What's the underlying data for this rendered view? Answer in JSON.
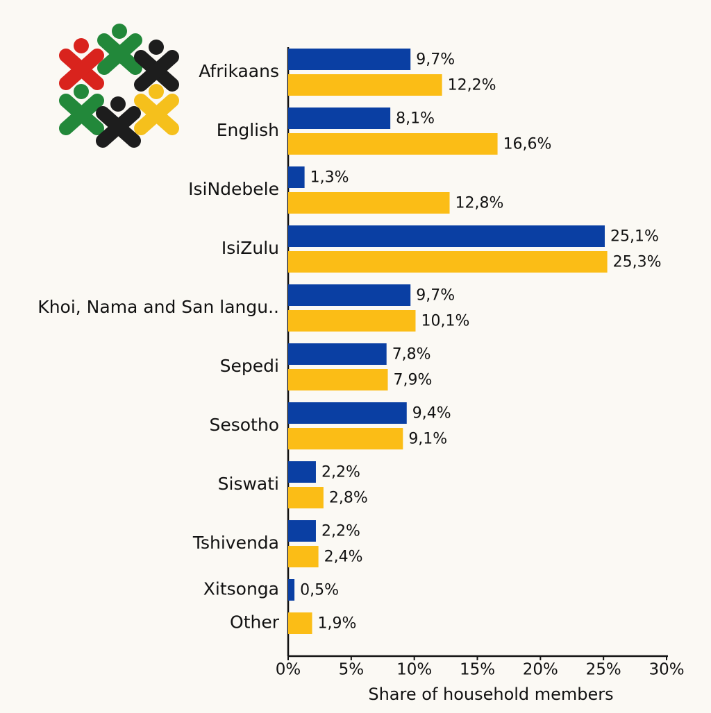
{
  "chart_data": {
    "type": "bar",
    "orientation": "horizontal",
    "x_label": "Share of household members",
    "categories": [
      "Afrikaans",
      "English",
      "IsiNdebele",
      "IsiZulu",
      "Khoi, Nama and San langu..",
      "Sepedi",
      "Sesotho",
      "Siswati",
      "Tshivenda",
      "Xitsonga",
      "Other"
    ],
    "series": [
      {
        "color": "#0a3fa3",
        "values": [
          9.7,
          8.1,
          1.3,
          25.1,
          9.7,
          7.8,
          9.4,
          2.2,
          2.2,
          0.5,
          null
        ],
        "value_labels": [
          "9,7%",
          "8,1%",
          "1,3%",
          "25,1%",
          "9,7%",
          "7,8%",
          "9,4%",
          "2,2%",
          "2,2%",
          "0,5%",
          null
        ]
      },
      {
        "color": "#fbbd16",
        "values": [
          12.2,
          16.6,
          12.8,
          25.3,
          10.1,
          7.9,
          9.1,
          2.8,
          2.4,
          null,
          1.9
        ],
        "value_labels": [
          "12,2%",
          "16,6%",
          "12,8%",
          "25,3%",
          "10,1%",
          "7,9%",
          "9,1%",
          "2,8%",
          "2,4%",
          null,
          "1,9%"
        ]
      }
    ],
    "xlim": [
      0,
      30
    ],
    "xticks": [
      {
        "value": 0,
        "label": "0%"
      },
      {
        "value": 5,
        "label": "5%"
      },
      {
        "value": 10,
        "label": "10%"
      },
      {
        "value": 15,
        "label": "15%"
      },
      {
        "value": 20,
        "label": "20%"
      },
      {
        "value": 25,
        "label": "25%"
      },
      {
        "value": 30,
        "label": "30%"
      }
    ]
  }
}
